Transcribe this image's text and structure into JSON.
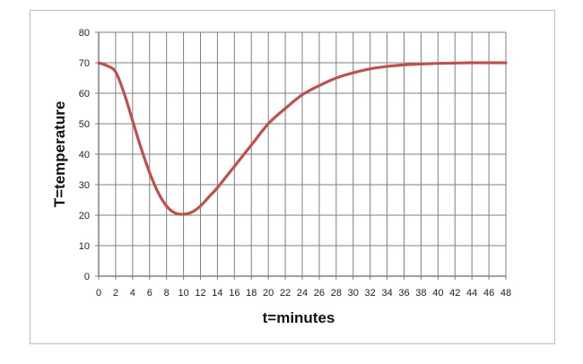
{
  "chart_data": {
    "type": "line",
    "title": "",
    "xlabel": "t=minutes",
    "ylabel": "T=temperature",
    "xlim": [
      0,
      48
    ],
    "ylim": [
      0,
      80
    ],
    "x_ticks": [
      0,
      2,
      4,
      6,
      8,
      10,
      12,
      14,
      16,
      18,
      20,
      22,
      24,
      26,
      28,
      30,
      32,
      34,
      36,
      38,
      40,
      42,
      44,
      46,
      48
    ],
    "y_ticks": [
      0,
      10,
      20,
      30,
      40,
      50,
      60,
      70,
      80
    ],
    "grid": true,
    "legend": "none",
    "series": [
      {
        "color": "#c0504d",
        "x": [
          0,
          1,
          2,
          3,
          4,
          5,
          6,
          7,
          8,
          9,
          10,
          11,
          12,
          13,
          14,
          15,
          16,
          18,
          20,
          22,
          24,
          26,
          28,
          30,
          32,
          34,
          36,
          38,
          40,
          42,
          44,
          46,
          48
        ],
        "y": [
          70,
          69,
          67,
          60,
          51,
          42,
          34,
          27.5,
          23,
          20.7,
          20.3,
          21,
          23,
          26,
          29,
          32.5,
          36,
          43,
          50,
          55,
          59.5,
          62.5,
          65,
          66.7,
          68,
          68.8,
          69.3,
          69.6,
          69.8,
          69.9,
          70,
          70,
          70
        ]
      }
    ]
  },
  "colors": {
    "grid": "#7f7f7f",
    "axis": "#808080",
    "line": "#c0504d"
  }
}
